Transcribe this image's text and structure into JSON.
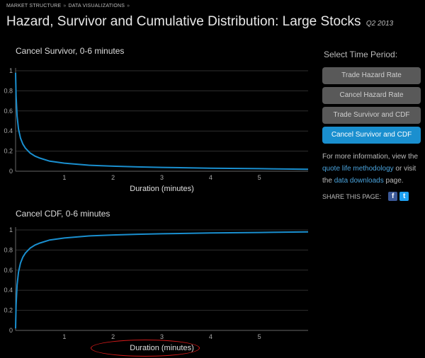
{
  "breadcrumb": [
    "MARKET STRUCTURE",
    "DATA VISUALIZATIONS"
  ],
  "breadcrumb_sep": "»",
  "page": {
    "title": "Hazard, Survivor and Cumulative Distribution: Large Stocks",
    "period": "Q2 2013"
  },
  "sidebar": {
    "heading": "Select Time Period:",
    "buttons": [
      {
        "label": "Trade Hazard Rate",
        "active": false
      },
      {
        "label": "Cancel Hazard Rate",
        "active": false
      },
      {
        "label": "Trade Survivor and CDF",
        "active": false
      },
      {
        "label": "Cancel Survivor and CDF",
        "active": true
      }
    ],
    "info": {
      "prefix": "For more information, view the",
      "link1": "quote life methodology",
      "middle": "or visit the",
      "link2": "data downloads",
      "suffix": "page."
    },
    "share_label": "SHARE THIS PAGE:",
    "share_icons": [
      "facebook-icon",
      "twitter-icon"
    ]
  },
  "colors": {
    "line": "#1a8fcf",
    "grid": "#2e2e2e",
    "axis_text": "#aaa",
    "highlight": "#d41a1a"
  },
  "chart_data": [
    {
      "type": "line",
      "title": "Cancel Survivor, 0-6 minutes",
      "xlabel": "Duration (minutes)",
      "ylabel": "",
      "xlim": [
        0,
        6
      ],
      "ylim": [
        0,
        1
      ],
      "xticks": [
        1,
        2,
        3,
        4,
        5
      ],
      "yticks": [
        0,
        0.2,
        0.4,
        0.6,
        0.8,
        1
      ],
      "ytick_labels": [
        "0",
        "0.2",
        "0.4",
        "0.6",
        "0.8",
        "1"
      ],
      "grid": true,
      "x": [
        0,
        0.01,
        0.03,
        0.06,
        0.1,
        0.15,
        0.2,
        0.3,
        0.4,
        0.5,
        0.7,
        1.0,
        1.5,
        2.0,
        2.5,
        3.0,
        4.0,
        5.0,
        6.0
      ],
      "y": [
        0.98,
        0.75,
        0.55,
        0.42,
        0.33,
        0.27,
        0.23,
        0.18,
        0.15,
        0.13,
        0.1,
        0.08,
        0.06,
        0.05,
        0.043,
        0.038,
        0.03,
        0.025,
        0.02
      ]
    },
    {
      "type": "line",
      "title": "Cancel CDF, 0-6 minutes",
      "xlabel": "Duration (minutes)",
      "ylabel": "",
      "xlim": [
        0,
        6
      ],
      "ylim": [
        0,
        1
      ],
      "xticks": [
        1,
        2,
        3,
        4,
        5
      ],
      "yticks": [
        0,
        0.2,
        0.4,
        0.6,
        0.8,
        1
      ],
      "ytick_labels": [
        "0",
        "0.2",
        "0.4",
        "0.6",
        "0.8",
        "1"
      ],
      "grid": true,
      "x": [
        0,
        0.01,
        0.03,
        0.06,
        0.1,
        0.15,
        0.2,
        0.3,
        0.4,
        0.5,
        0.7,
        1.0,
        1.5,
        2.0,
        2.5,
        3.0,
        4.0,
        5.0,
        6.0
      ],
      "y": [
        0.02,
        0.25,
        0.45,
        0.58,
        0.67,
        0.73,
        0.77,
        0.82,
        0.85,
        0.87,
        0.9,
        0.92,
        0.94,
        0.95,
        0.957,
        0.962,
        0.97,
        0.975,
        0.98
      ]
    }
  ]
}
